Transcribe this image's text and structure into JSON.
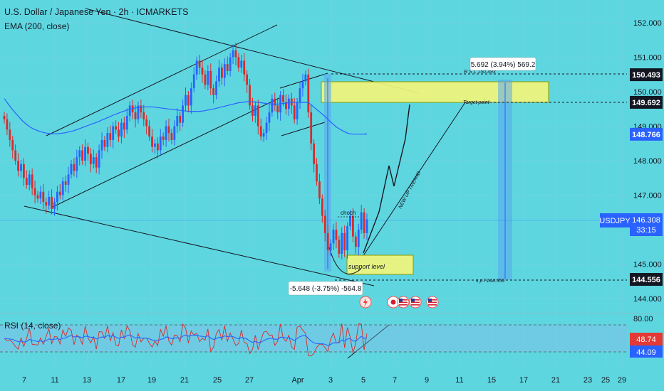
{
  "header": {
    "title": "U.S. Dollar / Japanese Yen · 2h · ICMARKETS",
    "indicator": "EMA (200, close)",
    "rsi_title": "RSI (14, close)"
  },
  "colors": {
    "background": "#5ed6e0",
    "up_candle": "#2962ff",
    "down_candle": "#d92b2b",
    "ema": "#2962ff",
    "zone": "#f2f57a",
    "measure": "#5aa7ef"
  },
  "chart_data": {
    "type": "candlestick",
    "symbol": "USDJPY",
    "timeframe": "2h",
    "price_axis": {
      "ticks": [
        "152.000",
        "151.000",
        "150.000",
        "149.000",
        "148.000",
        "147.000",
        "145.000",
        "144.000"
      ],
      "ylim": [
        143.6,
        152.4
      ]
    },
    "time_axis": {
      "ticks": [
        "7",
        "11",
        "13",
        "17",
        "19",
        "21",
        "25",
        "27",
        "Apr",
        "3",
        "5",
        "7",
        "9",
        "11",
        "15",
        "17",
        "21",
        "23",
        "25",
        "29"
      ]
    },
    "price_labels": [
      {
        "value": "150.493",
        "style": "dark"
      },
      {
        "value": "149.692",
        "style": "dark"
      },
      {
        "value": "148.766",
        "style": "blue"
      },
      {
        "value": "144.556",
        "style": "dark"
      }
    ],
    "current": {
      "symbol": "USDJPY",
      "price": "146.308",
      "countdown": "33:15"
    },
    "candles_closes": [
      149.2,
      148.9,
      148.6,
      148.3,
      148.0,
      147.7,
      147.9,
      147.5,
      147.3,
      147.6,
      147.2,
      147.0,
      146.9,
      147.1,
      146.8,
      146.7,
      146.95,
      146.6,
      146.8,
      147.1,
      147.0,
      147.4,
      147.3,
      147.6,
      147.9,
      147.7,
      148.1,
      148.3,
      148.0,
      148.4,
      148.2,
      147.9,
      148.1,
      147.8,
      148.3,
      148.6,
      148.4,
      148.8,
      148.6,
      149.0,
      148.9,
      148.7,
      149.1,
      148.9,
      149.3,
      149.6,
      149.4,
      149.2,
      149.6,
      149.4,
      149.2,
      149.0,
      148.7,
      148.4,
      148.5,
      148.3,
      148.7,
      148.6,
      149.0,
      148.8,
      148.6,
      149.0,
      149.3,
      149.1,
      149.6,
      149.9,
      149.6,
      150.1,
      150.5,
      150.9,
      150.7,
      150.5,
      150.2,
      150.6,
      150.1,
      149.9,
      150.3,
      150.7,
      150.4,
      150.8,
      150.6,
      151.0,
      151.2,
      151.0,
      150.7,
      150.9,
      150.5,
      150.2,
      149.6,
      149.3,
      149.6,
      149.0,
      148.7,
      148.8,
      149.1,
      149.4,
      149.8,
      149.6,
      149.4,
      149.9,
      149.7,
      149.5,
      149.8,
      149.6,
      149.2,
      149.7,
      150.1,
      150.3,
      150.5,
      149.4,
      148.5,
      147.9,
      147.4,
      146.9,
      146.4,
      145.9,
      145.4,
      145.6,
      146.0,
      145.7,
      145.3,
      145.9,
      145.4,
      146.1,
      146.4,
      145.8,
      145.5,
      146.0,
      146.5,
      145.9,
      146.3
    ],
    "ema_200": [
      149.8,
      149.69,
      149.58,
      149.48,
      149.38,
      149.29,
      149.2,
      149.12,
      149.05,
      148.99,
      148.94,
      148.9,
      148.87,
      148.84,
      148.82,
      148.8,
      148.79,
      148.78,
      148.78,
      148.78,
      148.79,
      148.8,
      148.81,
      148.83,
      148.85,
      148.87,
      148.9,
      148.93,
      148.96,
      148.99,
      149.02,
      149.05,
      149.08,
      149.11,
      149.14,
      149.18,
      149.21,
      149.25,
      149.28,
      149.32,
      149.35,
      149.38,
      149.41,
      149.44,
      149.47,
      149.49,
      149.51,
      149.53,
      149.54,
      149.55,
      149.56,
      149.56,
      149.56,
      149.56,
      149.55,
      149.54,
      149.53,
      149.52,
      149.51,
      149.5,
      149.49,
      149.48,
      149.47,
      149.46,
      149.45,
      149.44,
      149.43,
      149.43,
      149.43,
      149.43,
      149.43,
      149.44,
      149.45,
      149.47,
      149.48,
      149.5,
      149.52,
      149.54,
      149.56,
      149.58,
      149.6,
      149.62,
      149.64,
      149.66,
      149.68,
      149.69,
      149.7,
      149.71,
      149.71,
      149.71,
      149.7,
      149.69,
      149.68,
      149.67,
      149.66,
      149.65,
      149.64,
      149.64,
      149.64,
      149.65,
      149.66,
      149.67,
      149.68,
      149.69,
      149.69,
      149.69,
      149.69,
      149.69,
      149.69,
      149.68,
      149.62,
      149.55,
      149.48,
      149.42,
      149.35,
      149.28,
      149.2,
      149.12,
      149.05,
      148.98,
      148.93,
      148.88,
      148.84,
      148.8,
      148.78,
      148.77,
      148.77,
      148.77,
      148.77,
      148.77,
      148.77
    ],
    "rsi": {
      "ticks": [
        "80.00"
      ],
      "values": [
        "48.74",
        "44.09"
      ],
      "upper": 70,
      "lower": 30,
      "ylim": [
        18,
        84
      ]
    },
    "annotations": {
      "target_box": "5.692 (3.94%) 569.2",
      "stop_box": "-5.648 (-3.75%) -564.8",
      "rsl_label": "R S L 150.493",
      "target_point": "Target point",
      "support_level": "support level",
      "choch": "choch",
      "new_up_trend": "NEW UP TREAND",
      "spl_label": "s p l 144.556"
    }
  }
}
